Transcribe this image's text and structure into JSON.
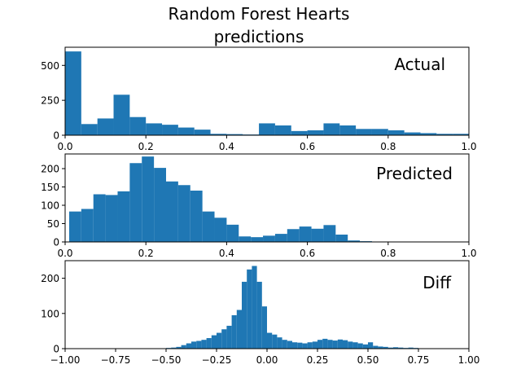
{
  "figure": {
    "title_line1": "Random Forest Hearts",
    "title_line2": "predictions"
  },
  "colors": {
    "bar": "#1f77b4",
    "axes": "#000000",
    "background": "#ffffff"
  },
  "chart_data": [
    {
      "type": "bar",
      "annotation": "Actual",
      "title": "",
      "xlabel": "",
      "ylabel": "",
      "xlim": [
        0,
        1
      ],
      "ylim": [
        0,
        630
      ],
      "xticks": [
        "0.0",
        "0.2",
        "0.4",
        "0.6",
        "0.8",
        "1.0"
      ],
      "yticks": [
        "0",
        "250",
        "500"
      ],
      "grid": false,
      "bin_width": 0.04,
      "bin_starts": [
        0.0,
        0.04,
        0.08,
        0.12,
        0.16,
        0.2,
        0.24,
        0.28,
        0.32,
        0.36,
        0.4,
        0.44,
        0.48,
        0.52,
        0.56,
        0.6,
        0.64,
        0.68,
        0.72,
        0.76,
        0.8,
        0.84,
        0.88,
        0.92,
        0.96
      ],
      "values": [
        600,
        80,
        120,
        290,
        130,
        85,
        75,
        55,
        40,
        10,
        8,
        5,
        85,
        70,
        30,
        35,
        85,
        70,
        45,
        45,
        35,
        20,
        15,
        10,
        10
      ]
    },
    {
      "type": "bar",
      "annotation": "Predicted",
      "title": "",
      "xlabel": "",
      "ylabel": "",
      "xlim": [
        0,
        1
      ],
      "ylim": [
        0,
        240
      ],
      "xticks": [
        "0.0",
        "0.2",
        "0.4",
        "0.6",
        "0.8",
        "1.0"
      ],
      "yticks": [
        "0",
        "50",
        "100",
        "150",
        "200"
      ],
      "grid": false,
      "bin_width": 0.03,
      "bin_starts": [
        0.01,
        0.04,
        0.07,
        0.1,
        0.13,
        0.16,
        0.19,
        0.22,
        0.25,
        0.28,
        0.31,
        0.34,
        0.37,
        0.4,
        0.43,
        0.46,
        0.49,
        0.52,
        0.55,
        0.58,
        0.61,
        0.64,
        0.67,
        0.7,
        0.73,
        0.76
      ],
      "values": [
        83,
        90,
        130,
        128,
        138,
        215,
        233,
        202,
        165,
        155,
        140,
        83,
        66,
        47,
        15,
        13,
        17,
        22,
        35,
        42,
        36,
        46,
        20,
        4,
        2,
        1
      ]
    },
    {
      "type": "bar",
      "annotation": "Diff",
      "title": "",
      "xlabel": "",
      "ylabel": "",
      "xlim": [
        -1,
        1
      ],
      "ylim": [
        0,
        250
      ],
      "xticks": [
        "−1.00",
        "−0.75",
        "−0.50",
        "−0.25",
        "0.00",
        "0.25",
        "0.50",
        "0.75",
        "1.00"
      ],
      "yticks": [
        "0",
        "100",
        "200"
      ],
      "grid": false,
      "bin_width": 0.025,
      "bin_starts": [
        -0.525,
        -0.5,
        -0.475,
        -0.45,
        -0.425,
        -0.4,
        -0.375,
        -0.35,
        -0.325,
        -0.3,
        -0.275,
        -0.25,
        -0.225,
        -0.2,
        -0.175,
        -0.15,
        -0.125,
        -0.1,
        -0.075,
        -0.05,
        -0.025,
        0.0,
        0.025,
        0.05,
        0.075,
        0.1,
        0.125,
        0.15,
        0.175,
        0.2,
        0.225,
        0.25,
        0.275,
        0.3,
        0.325,
        0.35,
        0.375,
        0.4,
        0.425,
        0.45,
        0.475,
        0.5,
        0.525,
        0.55,
        0.575,
        0.6,
        0.625,
        0.65,
        0.675,
        0.7,
        0.725,
        0.75,
        0.775
      ],
      "values": [
        1,
        2,
        3,
        5,
        10,
        15,
        20,
        22,
        25,
        30,
        38,
        45,
        55,
        65,
        95,
        110,
        190,
        225,
        235,
        190,
        120,
        45,
        40,
        32,
        25,
        22,
        18,
        17,
        15,
        18,
        20,
        25,
        28,
        25,
        23,
        26,
        24,
        20,
        18,
        15,
        12,
        18,
        8,
        6,
        5,
        3,
        4,
        3,
        2,
        3,
        2,
        1,
        1
      ]
    }
  ]
}
